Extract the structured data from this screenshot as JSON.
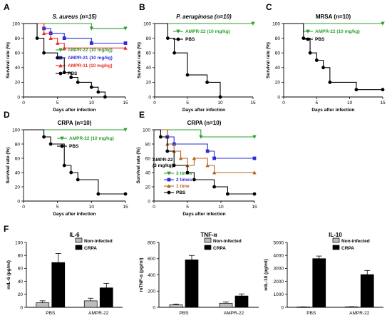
{
  "chart_data": [
    {
      "panel": "A",
      "type": "line",
      "step": true,
      "title": "S. aureus (n=15)",
      "xlabel": "Days after infection",
      "ylabel": "Survival rate (%)",
      "xticks": [
        0,
        5,
        10,
        15
      ],
      "yticks": [
        0,
        20,
        40,
        60,
        80,
        100
      ],
      "xlim": [
        0,
        15
      ],
      "ylim": [
        0,
        100
      ],
      "legend_position": "lower-right",
      "series": [
        {
          "name": "AMPR-22 (10 mg/kg)",
          "color": "#2ca02c",
          "marker": "triangle-down",
          "points": [
            [
              0,
              100
            ],
            [
              10,
              93.3
            ],
            [
              15,
              93.3
            ]
          ]
        },
        {
          "name": "AMPR-21 (10 mg/kg)",
          "color": "#2b2bd9",
          "marker": "square",
          "points": [
            [
              0,
              100
            ],
            [
              3,
              93.3
            ],
            [
              4,
              86.7
            ],
            [
              6,
              80
            ],
            [
              10,
              73.3
            ],
            [
              15,
              73.3
            ]
          ]
        },
        {
          "name": "AMPR-11 (10 mg/kg)",
          "color": "#e8302a",
          "marker": "triangle-up",
          "points": [
            [
              0,
              100
            ],
            [
              3,
              86.7
            ],
            [
              4,
              80
            ],
            [
              5,
              73.3
            ],
            [
              6,
              66.7
            ],
            [
              15,
              66.7
            ]
          ]
        },
        {
          "name": "PBS",
          "color": "#000000",
          "marker": "circle",
          "points": [
            [
              0,
              100
            ],
            [
              2,
              80
            ],
            [
              3,
              60
            ],
            [
              5,
              53.3
            ],
            [
              6,
              33.3
            ],
            [
              7,
              26.7
            ],
            [
              8,
              20
            ],
            [
              10,
              13.3
            ],
            [
              11,
              6.7
            ],
            [
              12,
              0
            ]
          ]
        }
      ]
    },
    {
      "panel": "B",
      "type": "line",
      "step": true,
      "title": "P. aeruginosa (n=10)",
      "xlabel": "Days after infection",
      "ylabel": "Survival rate (%)",
      "xticks": [
        0,
        5,
        10,
        15
      ],
      "yticks": [
        0,
        20,
        40,
        60,
        80,
        100
      ],
      "xlim": [
        0,
        15
      ],
      "ylim": [
        0,
        100
      ],
      "legend_position": "top-right",
      "series": [
        {
          "name": "AMPR-22 (10 mg/kg)",
          "color": "#2ca02c",
          "marker": "triangle-down",
          "points": [
            [
              0,
              100
            ],
            [
              15,
              100
            ]
          ]
        },
        {
          "name": "PBS",
          "color": "#000000",
          "marker": "circle",
          "points": [
            [
              0,
              100
            ],
            [
              2,
              80
            ],
            [
              3,
              60
            ],
            [
              5,
              30
            ],
            [
              8,
              20
            ],
            [
              10,
              0
            ]
          ]
        }
      ]
    },
    {
      "panel": "C",
      "type": "line",
      "step": true,
      "title": "MRSA (n=10)",
      "xlabel": "Days after infection",
      "ylabel": "Survival rate (%)",
      "xticks": [
        0,
        5,
        10,
        15
      ],
      "yticks": [
        0,
        20,
        40,
        60,
        80,
        100
      ],
      "xlim": [
        0,
        15
      ],
      "ylim": [
        0,
        100
      ],
      "legend_position": "top-right",
      "series": [
        {
          "name": "AMPR-22 (10 mg/kg)",
          "color": "#2ca02c",
          "marker": "triangle-down",
          "points": [
            [
              0,
              100
            ],
            [
              15,
              100
            ]
          ]
        },
        {
          "name": "PBS",
          "color": "#000000",
          "marker": "circle",
          "points": [
            [
              0,
              100
            ],
            [
              3,
              80
            ],
            [
              4,
              60
            ],
            [
              5,
              50
            ],
            [
              6,
              40
            ],
            [
              7,
              20
            ],
            [
              11,
              10
            ],
            [
              15,
              10
            ]
          ]
        }
      ]
    },
    {
      "panel": "D",
      "type": "line",
      "step": true,
      "title": "CRPA (n=10)",
      "xlabel": "Days after infection",
      "ylabel": "Survival rate (%)",
      "xticks": [
        0,
        5,
        10,
        15
      ],
      "yticks": [
        0,
        20,
        40,
        60,
        80,
        100
      ],
      "xlim": [
        0,
        15
      ],
      "ylim": [
        0,
        100
      ],
      "legend_position": "top-right",
      "series": [
        {
          "name": "AMPR-22 (10 mg/kg)",
          "color": "#2ca02c",
          "marker": "triangle-down",
          "points": [
            [
              0,
              100
            ],
            [
              15,
              100
            ]
          ]
        },
        {
          "name": "PBS",
          "color": "#000000",
          "marker": "circle",
          "points": [
            [
              0,
              100
            ],
            [
              3,
              90
            ],
            [
              4,
              80
            ],
            [
              6,
              50
            ],
            [
              7,
              40
            ],
            [
              8,
              30
            ],
            [
              11,
              10
            ],
            [
              15,
              10
            ]
          ]
        }
      ]
    },
    {
      "panel": "E",
      "type": "line",
      "step": true,
      "title": "CRPA (n=10)",
      "xlabel": "Days after infection",
      "ylabel": "Survival rate (%)",
      "xticks": [
        0,
        5,
        10,
        15
      ],
      "yticks": [
        0,
        20,
        40,
        60,
        80,
        100
      ],
      "xlim": [
        0,
        15
      ],
      "ylim": [
        0,
        100
      ],
      "annotation": [
        "AMPR-22",
        "(3 mg/kg)"
      ],
      "legend_position": "lower-left",
      "series": [
        {
          "name": "3 times",
          "color": "#2ca02c",
          "marker": "triangle-down",
          "points": [
            [
              0,
              100
            ],
            [
              7,
              90
            ],
            [
              15,
              90
            ]
          ]
        },
        {
          "name": "2 times",
          "color": "#2b2bd9",
          "marker": "square",
          "points": [
            [
              0,
              100
            ],
            [
              2,
              90
            ],
            [
              3,
              80
            ],
            [
              8,
              70
            ],
            [
              9,
              60
            ],
            [
              15,
              60
            ]
          ]
        },
        {
          "name": "1 time",
          "color": "#b8641e",
          "marker": "triangle-up",
          "points": [
            [
              0,
              100
            ],
            [
              2,
              80
            ],
            [
              3,
              70
            ],
            [
              4,
              60
            ],
            [
              5,
              50
            ],
            [
              6,
              60
            ],
            [
              8,
              50
            ],
            [
              9,
              40
            ],
            [
              15,
              40
            ]
          ]
        },
        {
          "name": "PBS",
          "color": "#000000",
          "marker": "circle",
          "points": [
            [
              0,
              100
            ],
            [
              1,
              90
            ],
            [
              2,
              70
            ],
            [
              3,
              50
            ],
            [
              5,
              40
            ],
            [
              6,
              30
            ],
            [
              9,
              20
            ],
            [
              11,
              10
            ],
            [
              15,
              10
            ]
          ]
        }
      ]
    },
    {
      "panel": "F",
      "type": "bar",
      "title": "IL-6",
      "ylabel": "mIL-6 (pg/ml)",
      "categories": [
        "PBS",
        "AMPR-22"
      ],
      "yticks": [
        0,
        20,
        40,
        60,
        80,
        100
      ],
      "ylim": [
        0,
        100
      ],
      "legend_position": "top-right",
      "series": [
        {
          "name": "Non-infected",
          "color": "#bdbdbd",
          "values": [
            7,
            10
          ],
          "errors": [
            3,
            4
          ]
        },
        {
          "name": "CRPA",
          "color": "#000000",
          "values": [
            69,
            30
          ],
          "errors": [
            14,
            7
          ]
        }
      ]
    },
    {
      "type": "bar",
      "title": "TNF-α",
      "ylabel": "mTNF-α (pg/ml)",
      "categories": [
        "PBS",
        "AMPR-22"
      ],
      "yticks": [
        0,
        200,
        400,
        600,
        800
      ],
      "ylim": [
        0,
        800
      ],
      "legend_position": "top-right",
      "series": [
        {
          "name": "Non-infected",
          "color": "#bdbdbd",
          "values": [
            30,
            50
          ],
          "errors": [
            10,
            15
          ]
        },
        {
          "name": "CRPA",
          "color": "#000000",
          "values": [
            585,
            140
          ],
          "errors": [
            55,
            25
          ]
        }
      ]
    },
    {
      "type": "bar",
      "title": "IL-10",
      "ylabel": "mIL-10 (pg/ml)",
      "categories": [
        "PBS",
        "AMPR-22"
      ],
      "yticks": [
        0,
        1000,
        2000,
        3000,
        4000,
        5000
      ],
      "ylim": [
        0,
        5000
      ],
      "legend_position": "top-right",
      "series": [
        {
          "name": "Non-infected",
          "color": "#bdbdbd",
          "values": [
            30,
            40
          ],
          "errors": [
            10,
            10
          ]
        },
        {
          "name": "CRPA",
          "color": "#000000",
          "values": [
            3750,
            2520
          ],
          "errors": [
            200,
            320
          ]
        }
      ]
    }
  ]
}
